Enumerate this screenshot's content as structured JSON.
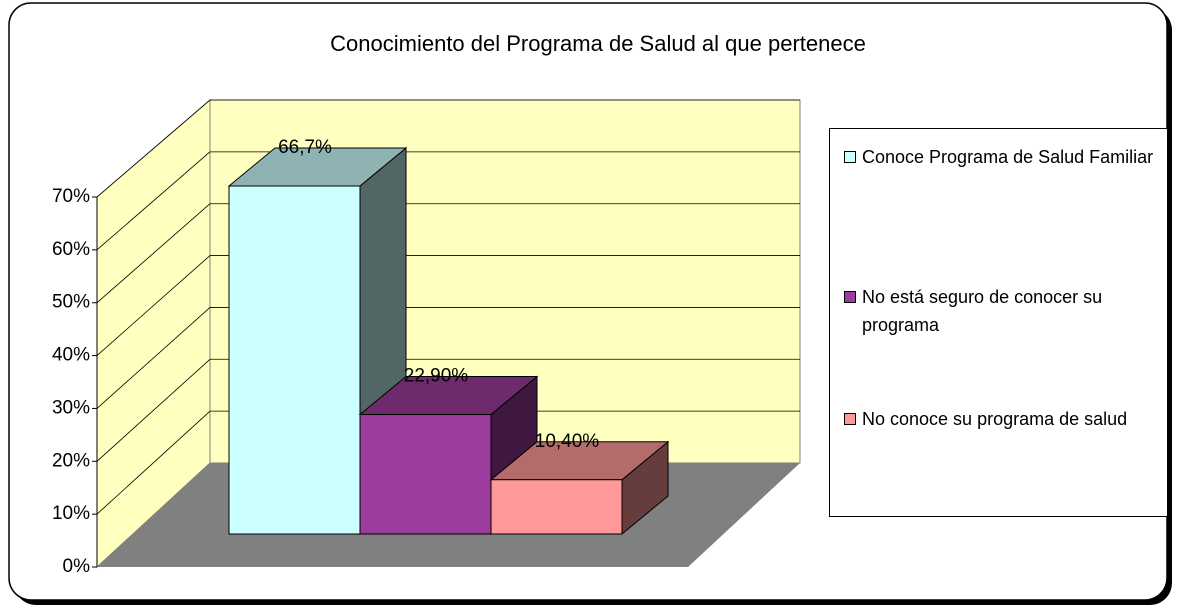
{
  "chart_data": {
    "type": "bar3d",
    "title": "Conocimiento del Programa de Salud al que pertenece",
    "series": [
      {
        "name": "Conoce Programa de Salud Familiar",
        "color": "#ccffff",
        "values": [
          66.7
        ],
        "value_labels": [
          "66,7%"
        ]
      },
      {
        "name": "No está seguro de conocer su programa",
        "color": "#9c3c9c",
        "values": [
          22.9
        ],
        "value_labels": [
          "22,90%"
        ]
      },
      {
        "name": "No conoce su programa de salud",
        "color": "#ff9999",
        "values": [
          10.4
        ],
        "value_labels": [
          "10,40%"
        ]
      }
    ],
    "ylim": [
      0,
      70
    ],
    "yticks": [
      {
        "value": 0,
        "label": "0%"
      },
      {
        "value": 10,
        "label": "10%"
      },
      {
        "value": 20,
        "label": "20%"
      },
      {
        "value": 30,
        "label": "30%"
      },
      {
        "value": 40,
        "label": "40%"
      },
      {
        "value": 50,
        "label": "50%"
      },
      {
        "value": 60,
        "label": "60%"
      },
      {
        "value": 70,
        "label": "70%"
      }
    ],
    "grid": true,
    "legend": "right"
  }
}
